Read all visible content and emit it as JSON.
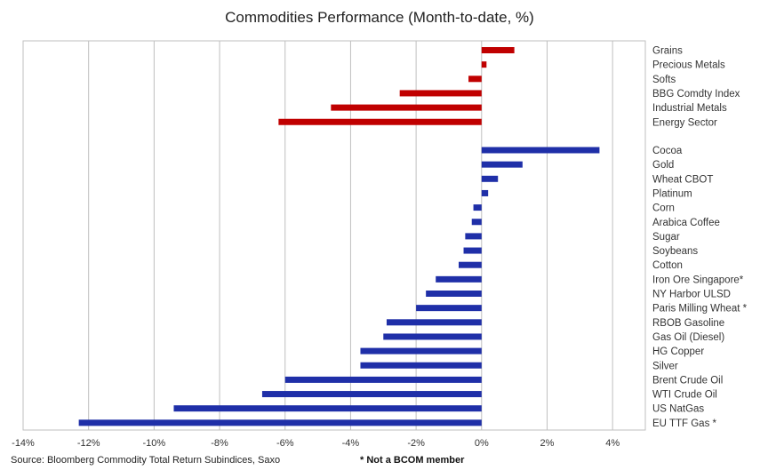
{
  "chart_data": {
    "type": "bar",
    "orientation": "horizontal",
    "title": "Commodities Performance (Month-to-date, %)",
    "xlim": [
      -14,
      5
    ],
    "xticks": [
      -14,
      -12,
      -10,
      -8,
      -6,
      -4,
      -2,
      0,
      2,
      4
    ],
    "tick_suffix": "%",
    "grid": true,
    "colors": {
      "index": "#C00000",
      "commodity": "#1F2FA8"
    },
    "series": [
      {
        "group": "index",
        "categories": [
          "Grains",
          "Precious Metals",
          "Softs",
          "BBG Comdty Index",
          "Industrial Metals",
          "Energy Sector"
        ],
        "values": [
          1.0,
          0.15,
          -0.4,
          -2.5,
          -4.6,
          -6.2
        ]
      },
      {
        "group": "commodity",
        "categories": [
          "Cocoa",
          "Gold",
          "Wheat CBOT",
          "Platinum",
          "Corn",
          "Arabica Coffee",
          "Sugar",
          "Soybeans",
          "Cotton",
          "Iron Ore Singapore*",
          "NY Harbor ULSD",
          "Paris Milling Wheat *",
          "RBOB Gasoline",
          "Gas Oil (Diesel)",
          "HG Copper",
          "Silver",
          "Brent Crude Oil",
          "WTI Crude Oil",
          "US NatGas",
          "EU TTF Gas *"
        ],
        "values": [
          3.6,
          1.25,
          0.5,
          0.2,
          -0.25,
          -0.3,
          -0.5,
          -0.55,
          -0.7,
          -1.4,
          -1.7,
          -2.0,
          -2.9,
          -3.0,
          -3.7,
          -3.7,
          -6.0,
          -6.7,
          -9.4,
          -12.3
        ]
      }
    ],
    "source": "Source: Bloomberg Commodity Total Return Subindices, Saxo",
    "note": "* Not a BCOM member"
  }
}
